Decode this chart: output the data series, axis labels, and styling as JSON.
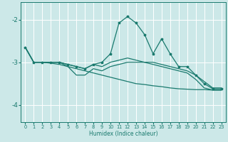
{
  "xlabel": "Humidex (Indice chaleur)",
  "xlim": [
    -0.5,
    23.5
  ],
  "ylim": [
    -4.4,
    -1.6
  ],
  "yticks": [
    -4,
    -3,
    -2
  ],
  "xticks": [
    0,
    1,
    2,
    3,
    4,
    5,
    6,
    7,
    8,
    9,
    10,
    11,
    12,
    13,
    14,
    15,
    16,
    17,
    18,
    19,
    20,
    21,
    22,
    23
  ],
  "bg_color": "#cce8e8",
  "grid_color": "#ffffff",
  "line_color": "#1a7a6e",
  "line1_x": [
    0,
    1,
    2,
    3,
    4,
    5,
    6,
    7,
    8,
    9,
    10,
    11,
    12,
    13,
    14,
    15,
    16,
    17,
    18,
    19,
    20,
    21,
    22,
    23
  ],
  "line1_y": [
    -2.65,
    -3.0,
    -3.0,
    -3.0,
    -3.0,
    -3.05,
    -3.1,
    -3.15,
    -3.05,
    -3.0,
    -2.8,
    -2.08,
    -1.93,
    -2.08,
    -2.35,
    -2.8,
    -2.45,
    -2.8,
    -3.1,
    -3.1,
    -3.3,
    -3.5,
    -3.62,
    -3.62
  ],
  "line2_x": [
    0,
    1,
    2,
    3,
    4,
    5,
    6,
    7,
    8,
    9,
    10,
    11,
    12,
    13,
    14,
    15,
    16,
    17,
    18,
    19,
    20,
    21,
    22,
    23
  ],
  "line2_y": [
    -2.65,
    -3.0,
    -3.0,
    -3.0,
    -3.0,
    -3.05,
    -3.1,
    -3.15,
    -3.05,
    -3.1,
    -3.0,
    -2.95,
    -2.9,
    -2.95,
    -3.0,
    -3.0,
    -3.05,
    -3.1,
    -3.15,
    -3.2,
    -3.3,
    -3.45,
    -3.6,
    -3.6
  ],
  "line3_x": [
    0,
    1,
    2,
    3,
    4,
    5,
    6,
    7,
    8,
    9,
    10,
    11,
    12,
    13,
    14,
    15,
    16,
    17,
    18,
    19,
    20,
    21,
    22,
    23
  ],
  "line3_y": [
    -2.65,
    -3.0,
    -3.0,
    -3.0,
    -3.0,
    -3.1,
    -3.3,
    -3.3,
    -3.15,
    -3.2,
    -3.1,
    -3.05,
    -3.0,
    -3.0,
    -3.0,
    -3.05,
    -3.1,
    -3.15,
    -3.2,
    -3.25,
    -3.4,
    -3.6,
    -3.65,
    -3.65
  ],
  "line4_x": [
    0,
    1,
    2,
    3,
    4,
    5,
    6,
    7,
    8,
    9,
    10,
    11,
    12,
    13,
    14,
    15,
    16,
    17,
    18,
    19,
    20,
    21,
    22,
    23
  ],
  "line4_y": [
    -2.65,
    -3.0,
    -3.0,
    -3.02,
    -3.05,
    -3.1,
    -3.15,
    -3.2,
    -3.25,
    -3.3,
    -3.35,
    -3.4,
    -3.45,
    -3.5,
    -3.52,
    -3.55,
    -3.57,
    -3.6,
    -3.62,
    -3.63,
    -3.64,
    -3.64,
    -3.65,
    -3.65
  ]
}
